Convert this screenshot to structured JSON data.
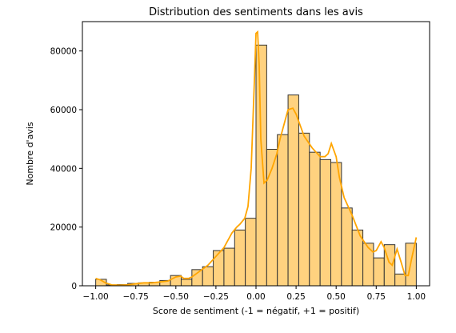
{
  "chart_data": {
    "type": "bar",
    "title": "Distribution des sentiments dans les avis",
    "xlabel": "Score de sentiment (-1 = négatif, +1 = positif)",
    "ylabel": "Nombre d'avis",
    "xlim": [
      -1.083,
      1.083
    ],
    "ylim": [
      0,
      90000
    ],
    "grid": false,
    "legend": false,
    "colors": {
      "bar_fill": "#FFD27F",
      "bar_edge": "#333333",
      "kde_line": "#FFA500"
    },
    "x_ticks": [
      -1.0,
      -0.75,
      -0.5,
      -0.25,
      0.0,
      0.25,
      0.5,
      0.75,
      1.0
    ],
    "x_tick_labels": [
      "−1.00",
      "−0.75",
      "−0.50",
      "−0.25",
      "0.00",
      "0.25",
      "0.50",
      "0.75",
      "1.00"
    ],
    "y_ticks": [
      0,
      20000,
      40000,
      60000,
      80000
    ],
    "y_tick_labels": [
      "0",
      "20000",
      "40000",
      "60000",
      "80000"
    ],
    "bins": {
      "edges": [
        -1.0,
        -0.9333,
        -0.8667,
        -0.8,
        -0.7333,
        -0.6667,
        -0.6,
        -0.5333,
        -0.4667,
        -0.4,
        -0.3333,
        -0.2667,
        -0.2,
        -0.1333,
        -0.0667,
        0.0,
        0.0667,
        0.1333,
        0.2,
        0.2667,
        0.3333,
        0.4,
        0.4667,
        0.5333,
        0.6,
        0.6667,
        0.7333,
        0.8,
        0.8667,
        0.9333,
        1.0
      ],
      "counts": [
        2200,
        300,
        400,
        800,
        1000,
        1200,
        1800,
        3500,
        2200,
        5500,
        6500,
        12000,
        12800,
        19000,
        23000,
        82000,
        46500,
        51500,
        65000,
        52000,
        45500,
        43000,
        42000,
        26500,
        19000,
        14500,
        9500,
        14000,
        4000,
        14500
      ]
    },
    "kde": {
      "x": [
        -1.0,
        -0.97,
        -0.94,
        -0.9,
        -0.85,
        -0.8,
        -0.75,
        -0.7,
        -0.65,
        -0.6,
        -0.55,
        -0.5,
        -0.47,
        -0.45,
        -0.42,
        -0.4,
        -0.35,
        -0.3,
        -0.25,
        -0.2,
        -0.15,
        -0.12,
        -0.1,
        -0.07,
        -0.05,
        -0.03,
        -0.01,
        0.0,
        0.01,
        0.02,
        0.03,
        0.05,
        0.07,
        0.1,
        0.13,
        0.15,
        0.18,
        0.2,
        0.23,
        0.25,
        0.28,
        0.3,
        0.35,
        0.4,
        0.43,
        0.45,
        0.47,
        0.5,
        0.52,
        0.55,
        0.6,
        0.65,
        0.7,
        0.73,
        0.75,
        0.78,
        0.8,
        0.83,
        0.85,
        0.88,
        0.9,
        0.93,
        0.95,
        0.97,
        1.0
      ],
      "y": [
        2500,
        2000,
        1000,
        300,
        200,
        300,
        700,
        1000,
        1000,
        1300,
        1600,
        3000,
        3300,
        2500,
        2500,
        3000,
        5000,
        7000,
        10000,
        13000,
        18000,
        20000,
        21000,
        23000,
        27000,
        40000,
        70000,
        86000,
        86500,
        75000,
        50000,
        35000,
        36000,
        40000,
        45000,
        50000,
        56000,
        60000,
        60500,
        58500,
        54000,
        51000,
        47000,
        44000,
        44000,
        45000,
        48500,
        44000,
        37000,
        30000,
        24000,
        17000,
        13000,
        11500,
        12000,
        15000,
        13000,
        8000,
        7000,
        12500,
        9000,
        3500,
        3500,
        9000,
        16500
      ]
    }
  }
}
